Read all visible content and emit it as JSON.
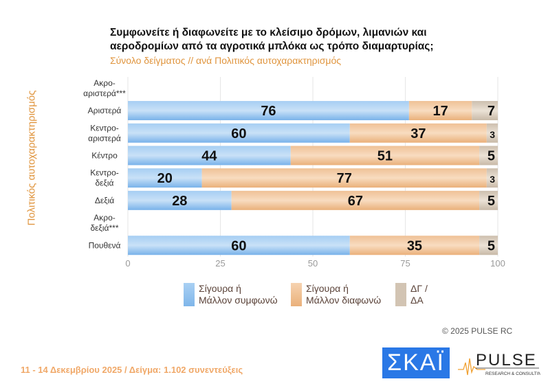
{
  "title_line1": "Συμφωνείτε ή διαφωνείτε με το κλείσιμο δρόμων, λιμανιών και",
  "title_line2": "αεροδρομίων από τα αγροτικά μπλόκα ως τρόπο διαμαρτυρίας;",
  "subtitle": "Σύνολο δείγματος // ανά Πολιτικός αυτοχαρακτηρισμός",
  "copyright": "©  2025  PULSE RC",
  "footer": "11 - 14 Δεκεμβρίου 2025  /  Δείγμα:  1.102 συνεντεύξεις",
  "logos": {
    "skai": "ΣΚΑΪ",
    "pulse": "PULSE",
    "pulse_sub": "RESEARCH & CONSULTING"
  },
  "colors": {
    "agree": "#7fb6ea",
    "disagree": "#f0c49a",
    "dk": "#d8cbbb",
    "accent": "#e0953e"
  },
  "chart_data": {
    "type": "bar",
    "orientation": "horizontal",
    "stacked": true,
    "ylabel": "Πολιτικός αυτοχαρακτηρισμός",
    "categories": [
      "Ακρο-\nαριστερά***",
      "Αριστερά",
      "Κεντρο-\nαριστερά",
      "Κέντρο",
      "Κεντρο-\nδεξιά",
      "Δεξιά",
      "Ακρο-\nδεξιά***",
      "Πουθενά"
    ],
    "series": [
      {
        "name": "Σίγουρα ή Μάλλον συμφωνώ",
        "values": [
          null,
          76,
          60,
          44,
          20,
          28,
          null,
          60
        ]
      },
      {
        "name": "Σίγουρα ή Μάλλον διαφωνώ",
        "values": [
          null,
          17,
          37,
          51,
          77,
          67,
          null,
          35
        ]
      },
      {
        "name": "ΔΓ / ΔΑ",
        "values": [
          null,
          7,
          3,
          5,
          3,
          5,
          null,
          5
        ]
      }
    ],
    "xlim": [
      0,
      100
    ],
    "xticks": [
      0,
      25,
      50,
      75,
      100
    ],
    "grid": true,
    "legend": "bottom"
  },
  "legend": [
    {
      "l1": "Σίγουρα ή",
      "l2": "Μάλλον συμφωνώ"
    },
    {
      "l1": "Σίγουρα ή",
      "l2": "Μάλλον διαφωνώ"
    },
    {
      "l1": "ΔΓ /",
      "l2": "ΔΑ"
    }
  ]
}
